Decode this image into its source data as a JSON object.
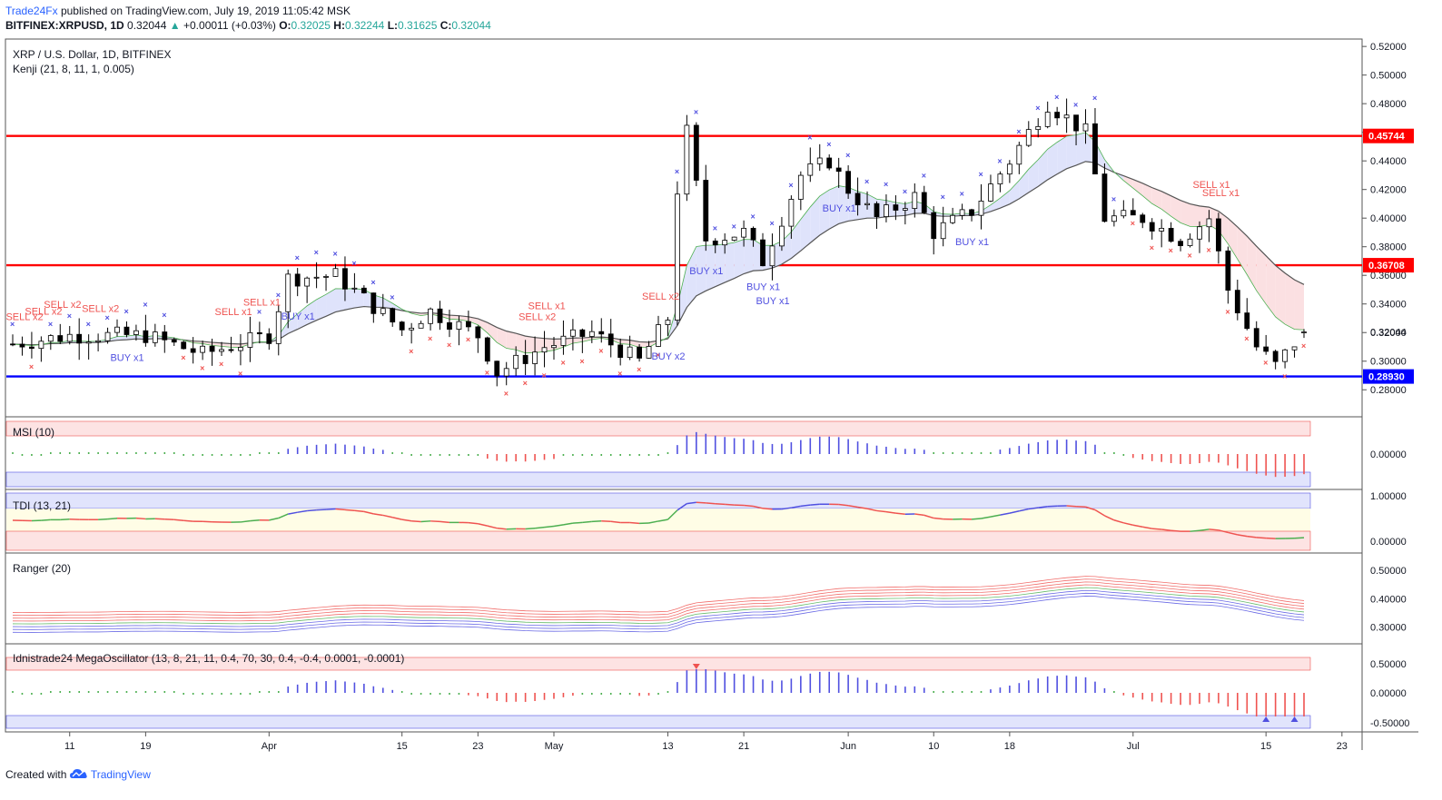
{
  "header": {
    "publisher": "Trade24Fx",
    "published_text": "published on TradingView.com, July 19, 2019 11:05:42 MSK",
    "symbol": "BITFINEX:XRPUSD, 1D",
    "last": "0.32044",
    "change": "+0.00011 (+0.03%)",
    "o_label": "O:",
    "o": "0.32025",
    "h_label": "H:",
    "h": "0.32244",
    "l_label": "L:",
    "l": "0.31625",
    "c_label": "C:",
    "c": "0.32044"
  },
  "footer": {
    "created_with": "Created with",
    "brand": "TradingView"
  },
  "colors": {
    "bg": "#ffffff",
    "red_level": "#ff0000",
    "blue_level": "#0000ff",
    "buy": "#5050e0",
    "sell": "#ef5350",
    "green": "#4caf50",
    "band_red": "#fde3e3",
    "band_blue": "#e1e4fc",
    "band_yellow": "#fffde6"
  },
  "icons": {
    "logo": "tradingview-cloud-icon"
  },
  "chart_data": {
    "type": "candlestick",
    "main_pane": {
      "title": "XRP / U.S. Dollar, 1D, BITFINEX",
      "indicator": "Kenji (21, 8, 11, 1, 0.005)",
      "y_ticks": [
        "0.52000",
        "0.50000",
        "0.48000",
        "0.46000",
        "0.44000",
        "0.42000",
        "0.40000",
        "0.38000",
        "0.36000",
        "0.34000",
        "0.32000",
        "0.30000",
        "0.28000"
      ],
      "ylim": [
        0.27,
        0.522
      ],
      "levels": [
        {
          "value": 0.45744,
          "label": "0.45744",
          "color": "red"
        },
        {
          "value": 0.36708,
          "label": "0.36708",
          "color": "red"
        },
        {
          "value": 0.2893,
          "label": "0.28930",
          "color": "blue"
        }
      ],
      "last_price_label": "0.32044",
      "series": [
        {
          "date": "2019-03-05",
          "close": 0.312
        },
        {
          "date": "2019-03-11",
          "close": 0.318
        },
        {
          "date": "2019-03-19",
          "close": 0.318
        },
        {
          "date": "2019-03-25",
          "close": 0.305
        },
        {
          "date": "2019-04-01",
          "close": 0.318
        },
        {
          "date": "2019-04-03",
          "close": 0.358
        },
        {
          "date": "2019-04-08",
          "close": 0.36
        },
        {
          "date": "2019-04-15",
          "close": 0.322
        },
        {
          "date": "2019-04-18",
          "close": 0.335
        },
        {
          "date": "2019-04-23",
          "close": 0.318
        },
        {
          "date": "2019-04-25",
          "close": 0.292
        },
        {
          "date": "2019-04-30",
          "close": 0.31
        },
        {
          "date": "2019-05-05",
          "close": 0.32
        },
        {
          "date": "2019-05-10",
          "close": 0.3
        },
        {
          "date": "2019-05-13",
          "close": 0.33
        },
        {
          "date": "2019-05-14",
          "close": 0.42
        },
        {
          "date": "2019-05-15",
          "close": 0.46
        },
        {
          "date": "2019-05-17",
          "close": 0.385
        },
        {
          "date": "2019-05-21",
          "close": 0.39
        },
        {
          "date": "2019-05-23",
          "close": 0.37
        },
        {
          "date": "2019-05-27",
          "close": 0.43
        },
        {
          "date": "2019-05-30",
          "close": 0.44
        },
        {
          "date": "2019-06-01",
          "close": 0.42
        },
        {
          "date": "2019-06-04",
          "close": 0.4
        },
        {
          "date": "2019-06-08",
          "close": 0.415
        },
        {
          "date": "2019-06-10",
          "close": 0.39
        },
        {
          "date": "2019-06-14",
          "close": 0.405
        },
        {
          "date": "2019-06-18",
          "close": 0.44
        },
        {
          "date": "2019-06-22",
          "close": 0.48
        },
        {
          "date": "2019-06-26",
          "close": 0.46
        },
        {
          "date": "2019-06-28",
          "close": 0.4
        },
        {
          "date": "2019-07-02",
          "close": 0.4
        },
        {
          "date": "2019-07-06",
          "close": 0.385
        },
        {
          "date": "2019-07-09",
          "close": 0.4
        },
        {
          "date": "2019-07-11",
          "close": 0.35
        },
        {
          "date": "2019-07-14",
          "close": 0.31
        },
        {
          "date": "2019-07-16",
          "close": 0.297
        },
        {
          "date": "2019-07-19",
          "close": 0.32044
        }
      ],
      "signals": [
        {
          "text": "SELL x2",
          "kind": "sell"
        },
        {
          "text": "SELL x2",
          "kind": "sell"
        },
        {
          "text": "SELL x2",
          "kind": "sell"
        },
        {
          "text": "SELL x2",
          "kind": "sell"
        },
        {
          "text": "BUY x1",
          "kind": "buy"
        },
        {
          "text": "SELL x1",
          "kind": "sell"
        },
        {
          "text": "SELL x1",
          "kind": "sell"
        },
        {
          "text": "BUY x1",
          "kind": "buy"
        },
        {
          "text": "SELL x2",
          "kind": "sell"
        },
        {
          "text": "SELL x1",
          "kind": "sell"
        },
        {
          "text": "SELL x2",
          "kind": "sell"
        },
        {
          "text": "BUY x2",
          "kind": "buy"
        },
        {
          "text": "BUY x1",
          "kind": "buy"
        },
        {
          "text": "BUY x1",
          "kind": "buy"
        },
        {
          "text": "BUY x1",
          "kind": "buy"
        },
        {
          "text": "BUY x1",
          "kind": "buy"
        },
        {
          "text": "BUY x1",
          "kind": "buy"
        },
        {
          "text": "SELL x1",
          "kind": "sell"
        },
        {
          "text": "SELL x1",
          "kind": "sell"
        }
      ]
    },
    "sub_panes": [
      {
        "name": "MSI (10)",
        "y_ticks": [
          "0.00000"
        ]
      },
      {
        "name": "TDI (13, 21)",
        "y_ticks": [
          "1.00000",
          "0.00000"
        ]
      },
      {
        "name": "Ranger (20)",
        "y_ticks": [
          "0.50000",
          "0.40000",
          "0.30000"
        ]
      },
      {
        "name": "Idnistrade24 MegaOscillator (13, 8, 21, 11, 0.4, 70, 30, 0.4, -0.4, 0.0001, -0.0001)",
        "y_ticks": [
          "0.50000",
          "0.00000",
          "-0.50000"
        ]
      }
    ],
    "x_ticks": [
      "11",
      "19",
      "Apr",
      "15",
      "23",
      "May",
      "13",
      "21",
      "Jun",
      "10",
      "18",
      "Jul",
      "15",
      "23"
    ]
  }
}
